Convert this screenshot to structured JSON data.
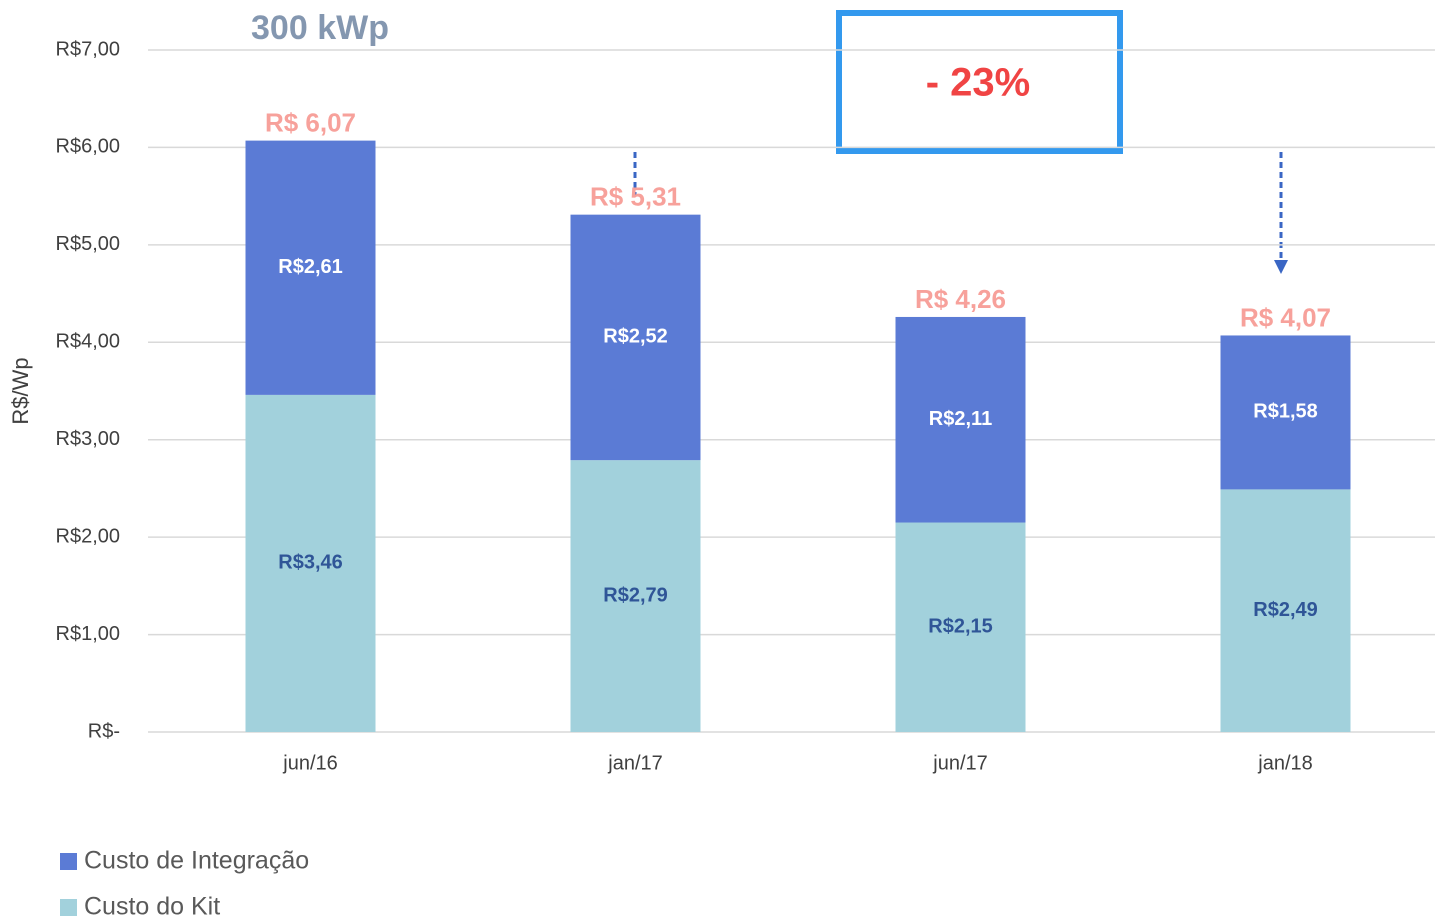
{
  "chart_data": {
    "type": "stacked_bar",
    "title": "300 kWp",
    "annotation": "- 23%",
    "y_label": "R$/Wp",
    "categories": [
      "jun/16",
      "jan/17",
      "jun/17",
      "jan/18"
    ],
    "series": [
      {
        "name": "Custo do Kit",
        "color": "#a2d1dc",
        "label_color": "#2f5597",
        "values": [
          3.46,
          2.79,
          2.15,
          2.49
        ],
        "value_labels": [
          "R$3,46",
          "R$2,79",
          "R$2,15",
          "R$2,49"
        ]
      },
      {
        "name": "Custo de Integração",
        "color": "#5b7bd5",
        "label_color": "#ffffff",
        "values": [
          2.61,
          2.52,
          2.11,
          1.58
        ],
        "value_labels": [
          "R$2,61",
          "R$2,52",
          "R$2,11",
          "R$1,58"
        ]
      }
    ],
    "totals": {
      "color": "#f7a19b",
      "values": [
        6.07,
        5.31,
        4.26,
        4.07
      ],
      "value_labels": [
        "R$ 6,07",
        "R$ 5,31",
        "R$ 4,26",
        "R$ 4,07"
      ]
    },
    "ylim": [
      0,
      7
    ],
    "yticks": [
      {
        "value": 0,
        "label": "R$-"
      },
      {
        "value": 1,
        "label": "R$1,00"
      },
      {
        "value": 2,
        "label": "R$2,00"
      },
      {
        "value": 3,
        "label": "R$3,00"
      },
      {
        "value": 4,
        "label": "R$4,00"
      },
      {
        "value": 5,
        "label": "R$5,00"
      },
      {
        "value": 6,
        "label": "R$6,00"
      },
      {
        "value": 7,
        "label": "R$7,00"
      }
    ],
    "grid": true
  }
}
